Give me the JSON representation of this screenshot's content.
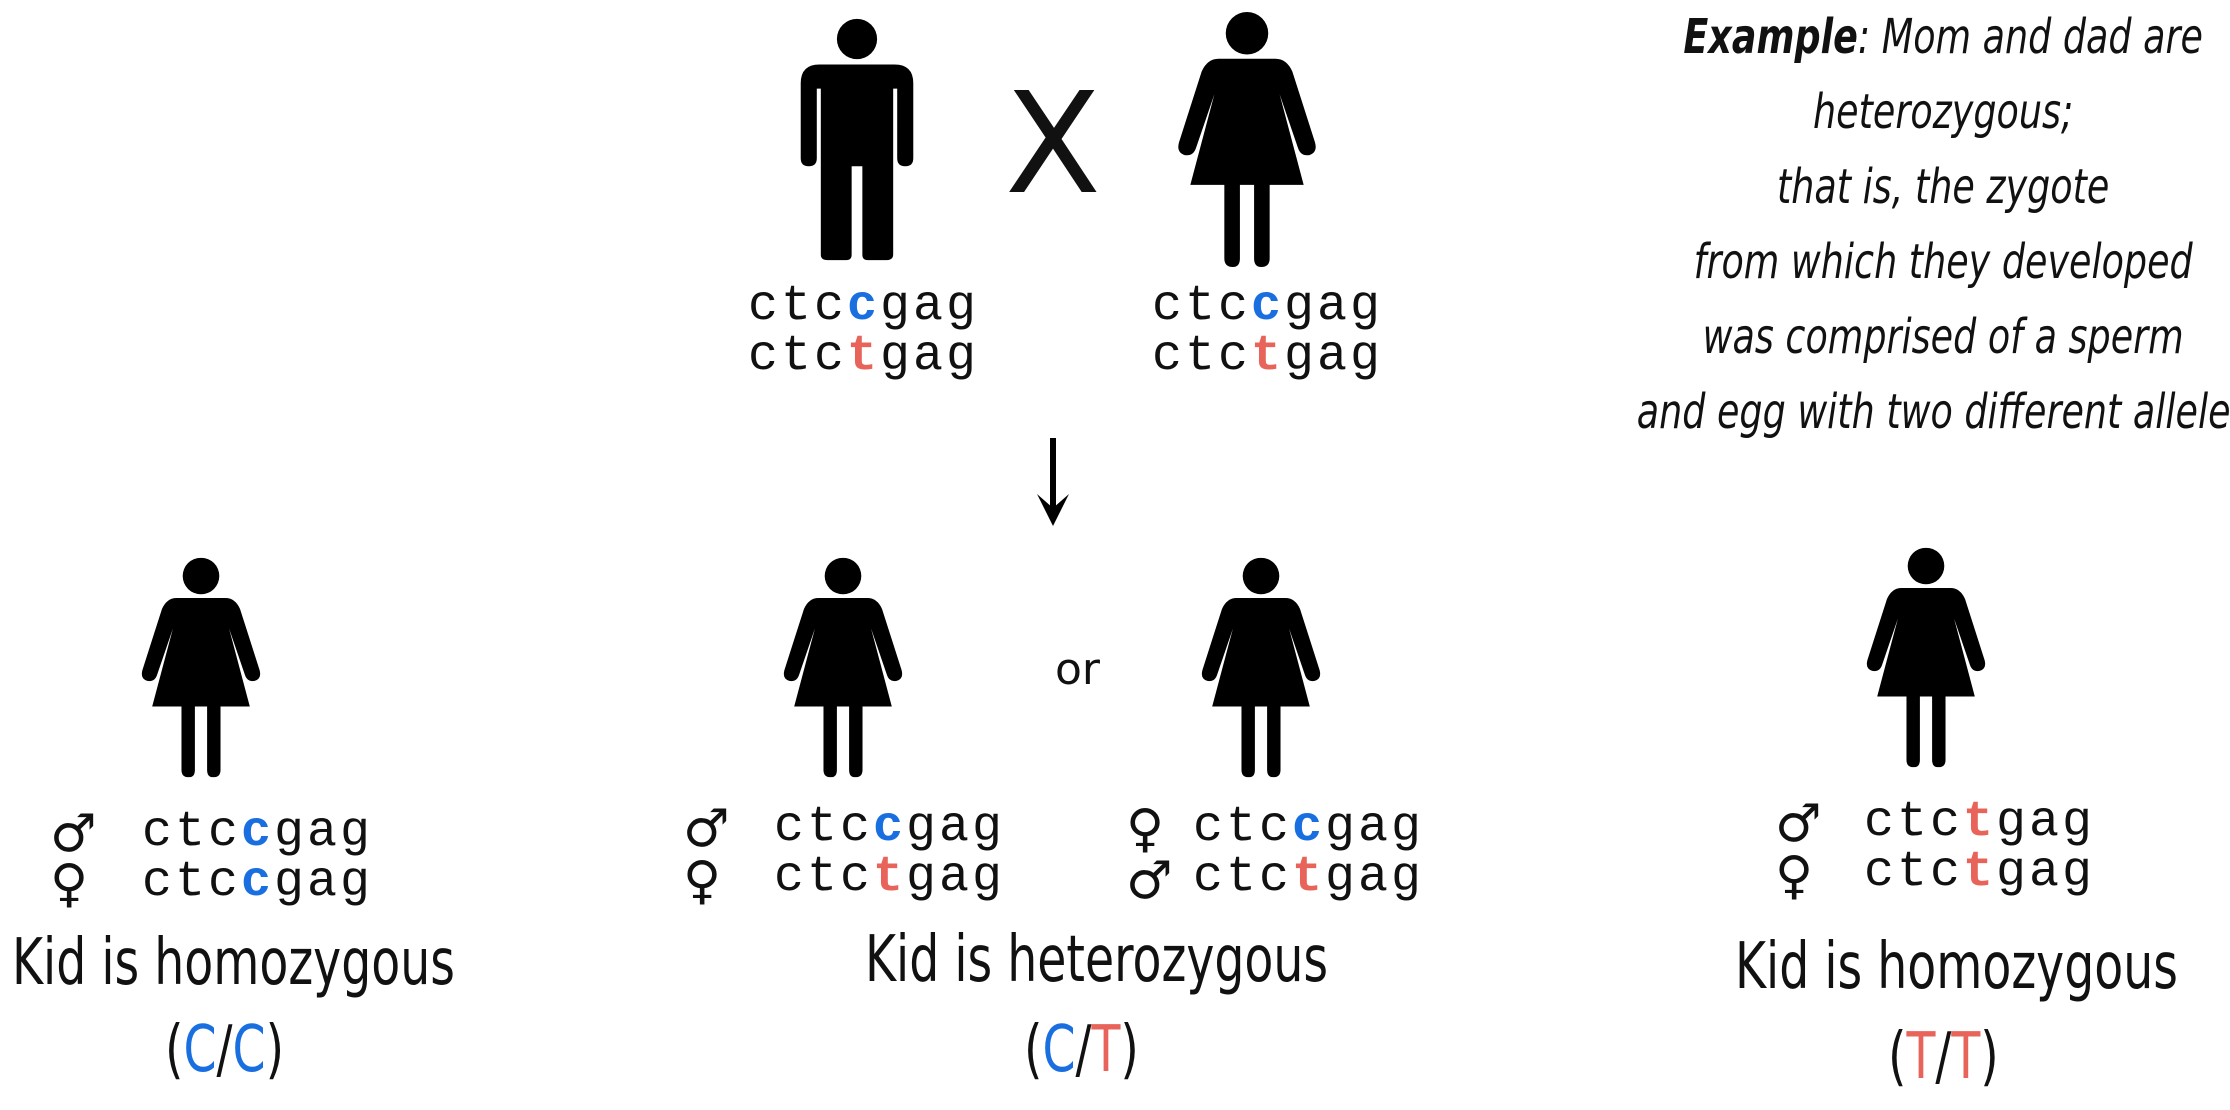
{
  "colors": {
    "allele_c": "#1a6fe0",
    "allele_t": "#e8645a",
    "figure": "#000000"
  },
  "note": {
    "lines": [
      {
        "bold": "Example",
        "rest": ": Mom and dad are"
      },
      {
        "bold": "",
        "rest": "heterozygous;"
      },
      {
        "bold": "",
        "rest": "that is, the zygote"
      },
      {
        "bold": "",
        "rest": "from which they developed"
      },
      {
        "bold": "",
        "rest": "was comprised of a sperm"
      },
      {
        "bold": "",
        "rest": "and egg with two different alleles"
      }
    ]
  },
  "cross_symbol": "X",
  "or_text": "or",
  "icons": {
    "man": "man-icon",
    "woman": "woman-icon",
    "arrow": "down-arrow-icon",
    "male": "♂",
    "female": "♀"
  },
  "parents": {
    "dad": {
      "seq1": {
        "pre": "ctc",
        "allele": "c",
        "post": "gag"
      },
      "seq2": {
        "pre": "ctc",
        "allele": "t",
        "post": "gag"
      }
    },
    "mom": {
      "seq1": {
        "pre": "ctc",
        "allele": "c",
        "post": "gag"
      },
      "seq2": {
        "pre": "ctc",
        "allele": "t",
        "post": "gag"
      }
    }
  },
  "kids": {
    "left": {
      "sym1": "♂",
      "sym2": "♀",
      "seq1": {
        "pre": "ctc",
        "allele": "c",
        "post": "gag"
      },
      "seq2": {
        "pre": "ctc",
        "allele": "c",
        "post": "gag"
      },
      "label": "Kid is homozygous",
      "geno": {
        "open": "(",
        "a1": "C",
        "slash": "/",
        "a2": "C",
        "close": ")"
      }
    },
    "mid1": {
      "sym1": "♂",
      "sym2": "♀",
      "seq1": {
        "pre": "ctc",
        "allele": "c",
        "post": "gag"
      },
      "seq2": {
        "pre": "ctc",
        "allele": "t",
        "post": "gag"
      }
    },
    "mid2": {
      "sym1": "♀",
      "sym2": "♂",
      "seq1": {
        "pre": "ctc",
        "allele": "c",
        "post": "gag"
      },
      "seq2": {
        "pre": "ctc",
        "allele": "t",
        "post": "gag"
      }
    },
    "middle_label": "Kid is heterozygous",
    "middle_geno": {
      "open": "(",
      "a1": "C",
      "slash": "/",
      "a2": "T",
      "close": ")"
    },
    "right": {
      "sym1": "♂",
      "sym2": "♀",
      "seq1": {
        "pre": "ctc",
        "allele": "t",
        "post": "gag"
      },
      "seq2": {
        "pre": "ctc",
        "allele": "t",
        "post": "gag"
      },
      "label": "Kid is homozygous",
      "geno": {
        "open": "(",
        "a1": "T",
        "slash": "/",
        "a2": "T",
        "close": ")"
      }
    }
  }
}
